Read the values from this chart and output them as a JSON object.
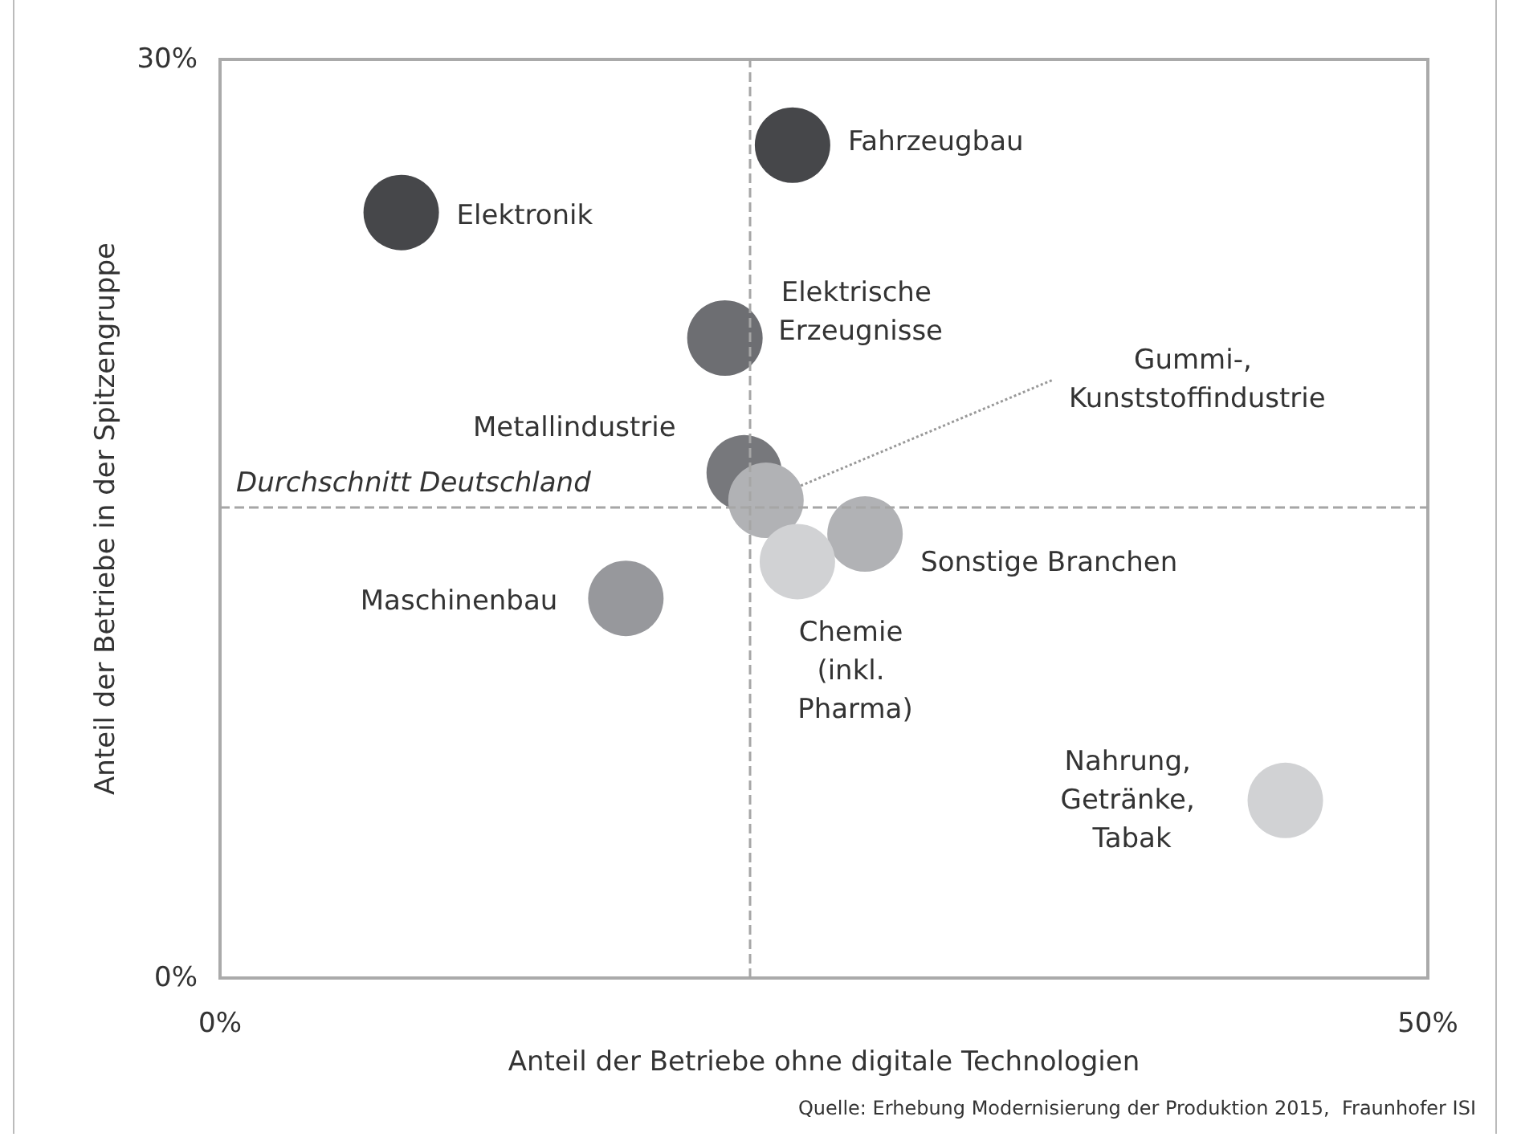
{
  "chart_data": {
    "type": "scatter",
    "xlabel": "Anteil der Betriebe ohne digitale Technologien",
    "ylabel": "Anteil der Betriebe in der Spitzengruppe",
    "xlim": [
      0,
      50
    ],
    "xticks": [
      {
        "value": 0,
        "label": "0%"
      },
      {
        "value": 50,
        "label": "50%"
      }
    ],
    "ylim": [
      0,
      30
    ],
    "yticks": [
      {
        "value": 0,
        "label": "0%"
      },
      {
        "value": 30,
        "label": "30%"
      }
    ],
    "grid": false,
    "legend": false,
    "marker": "circle",
    "series": [
      {
        "name": "Fahrzeugbau",
        "color": "#46474a",
        "x": [
          23.7
        ],
        "values": [
          27.2
        ]
      },
      {
        "name": "Elektronik",
        "color": "#46474a",
        "x": [
          7.5
        ],
        "values": [
          25.0
        ]
      },
      {
        "name": "Elektrische Erzeugnisse",
        "color": "#6d6e72",
        "x": [
          20.9
        ],
        "values": [
          20.9
        ]
      },
      {
        "name": "Metallindustrie",
        "color": "#77787c",
        "x": [
          21.7
        ],
        "values": [
          16.5
        ]
      },
      {
        "name": "Gummi-, Kunststoffindustrie",
        "color": "#b1b2b5",
        "x": [
          22.6
        ],
        "values": [
          15.6
        ]
      },
      {
        "name": "Sonstige Branchen",
        "color": "#b1b2b5",
        "x": [
          26.7
        ],
        "values": [
          14.5
        ]
      },
      {
        "name": "Chemie (inkl. Pharma)",
        "color": "#d1d2d4",
        "x": [
          23.9
        ],
        "values": [
          13.6
        ]
      },
      {
        "name": "Maschinenbau",
        "color": "#97989c",
        "x": [
          16.8
        ],
        "values": [
          12.4
        ]
      },
      {
        "name": "Nahrung, Getränke, Tabak",
        "color": "#d1d2d4",
        "x": [
          44.1
        ],
        "values": [
          5.8
        ]
      }
    ],
    "ref_lines": [
      {
        "axis": "y",
        "value": 15.4,
        "label": "Durchschnitt Deutschland",
        "color": "#a6a6a6",
        "line_style": "dashed"
      },
      {
        "axis": "x",
        "value": 21.9,
        "label": null,
        "color": "#a6a6a6",
        "line_style": "dashed"
      }
    ],
    "annotations": [
      "Quelle: Erhebung Modernisierung der Produktion 2015,  Fraunhofer ISI"
    ]
  }
}
